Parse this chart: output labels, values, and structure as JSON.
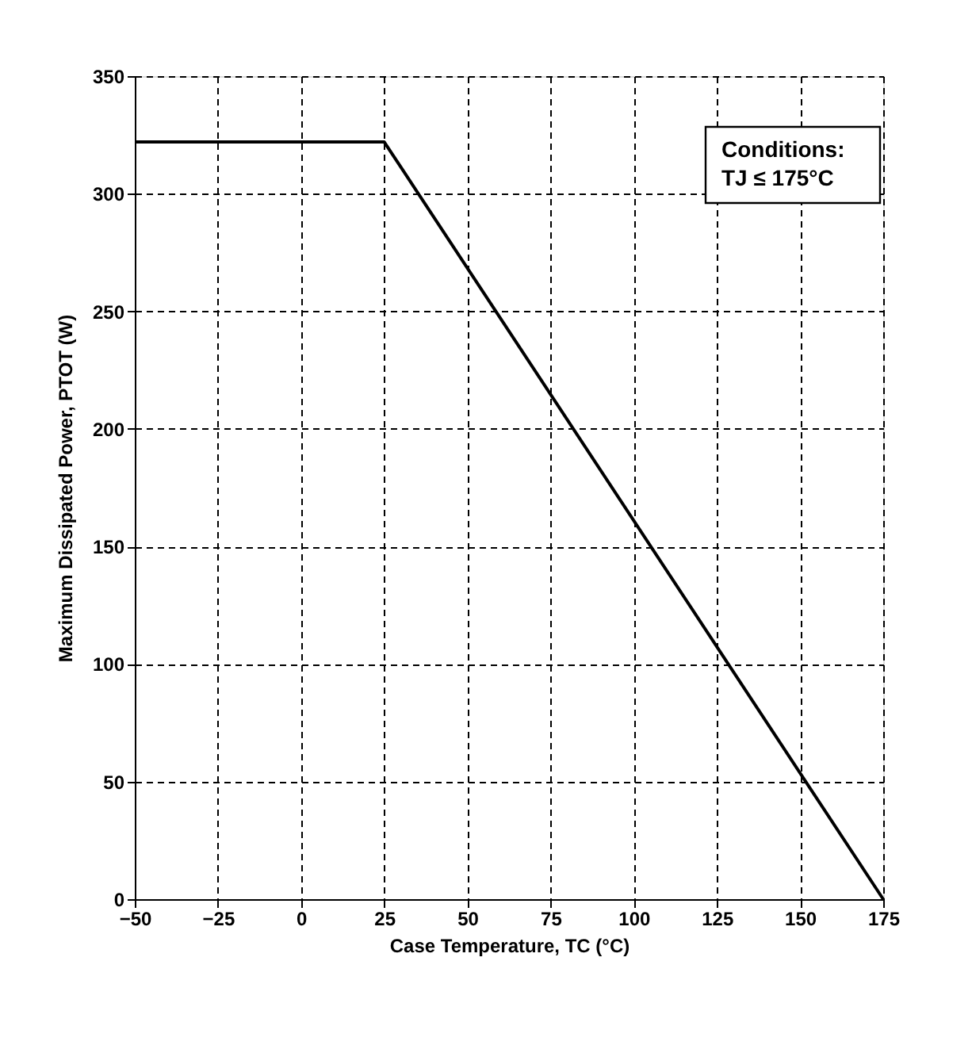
{
  "chart_data": {
    "type": "line",
    "xlabel": "Case Temperature, TC (°C)",
    "ylabel": "Maximum Dissipated Power, PTOT (W)",
    "x": [
      -50,
      25,
      175
    ],
    "series": [
      {
        "color": "#000000",
        "values": [
          322,
          322,
          0
        ]
      }
    ],
    "xlim": [
      -50,
      175
    ],
    "xticks": [
      -50,
      -25,
      0,
      25,
      50,
      75,
      100,
      125,
      150,
      175
    ],
    "ylim": [
      0,
      350
    ],
    "yticks": [
      0,
      50,
      100,
      150,
      200,
      250,
      300,
      350
    ],
    "grid": true,
    "marker": "none",
    "line_style": "solid",
    "legend": false,
    "annotations": [
      "Conditions:\nTJ ≤ 175°C"
    ]
  }
}
